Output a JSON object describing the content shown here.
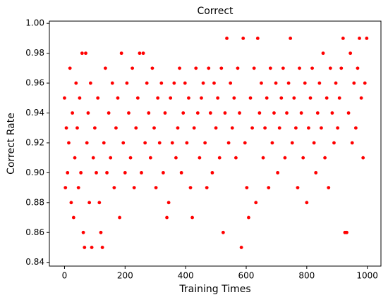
{
  "chart_data": {
    "type": "scatter",
    "title": "Correct",
    "xlabel": "Training Times",
    "ylabel": "Correct Rate",
    "xlim": [
      -50,
      1045
    ],
    "ylim": [
      0.8375,
      1.0015
    ],
    "xticks": [
      0,
      200,
      400,
      600,
      800,
      1000
    ],
    "yticks": [
      0.84,
      0.86,
      0.88,
      {
        "value": 0.9,
        "label": "0.90"
      },
      0.92,
      0.94,
      0.96,
      0.98,
      {
        "value": 1.0,
        "label": "1.00"
      }
    ],
    "color": "#ff0000",
    "series": [
      {
        "color": "#ff0000",
        "x": [
          0,
          3,
          6,
          10,
          14,
          18,
          22,
          26,
          30,
          34,
          38,
          42,
          46,
          50,
          54,
          58,
          62,
          66,
          70,
          74,
          78,
          82,
          86,
          90,
          95,
          100,
          105,
          110,
          115,
          120,
          125,
          130,
          135,
          140,
          146,
          152,
          158,
          164,
          170,
          176,
          182,
          188,
          194,
          200,
          206,
          212,
          218,
          224,
          230,
          236,
          242,
          248,
          254,
          260,
          266,
          272,
          278,
          284,
          290,
          296,
          302,
          308,
          314,
          320,
          326,
          332,
          338,
          344,
          350,
          356,
          362,
          368,
          374,
          380,
          386,
          392,
          398,
          404,
          410,
          416,
          422,
          428,
          434,
          440,
          446,
          452,
          458,
          464,
          470,
          476,
          482,
          488,
          494,
          500,
          506,
          512,
          518,
          524,
          530,
          536,
          542,
          548,
          554,
          560,
          566,
          572,
          578,
          584,
          590,
          596,
          602,
          608,
          614,
          620,
          626,
          632,
          638,
          644,
          650,
          656,
          662,
          668,
          674,
          680,
          686,
          692,
          698,
          704,
          710,
          716,
          722,
          728,
          734,
          740,
          746,
          752,
          758,
          764,
          770,
          776,
          782,
          788,
          794,
          800,
          806,
          812,
          818,
          824,
          830,
          836,
          842,
          848,
          854,
          860,
          866,
          872,
          878,
          884,
          890,
          896,
          902,
          908,
          914,
          920,
          926,
          932,
          938,
          944,
          950,
          956,
          962,
          968,
          974,
          980,
          986,
          992,
          998
        ],
        "y": [
          0.95,
          0.89,
          0.93,
          0.9,
          0.92,
          0.97,
          0.88,
          0.94,
          0.87,
          0.91,
          0.96,
          0.93,
          0.89,
          0.95,
          0.9,
          0.98,
          0.86,
          0.85,
          0.98,
          0.92,
          0.94,
          0.88,
          0.96,
          0.85,
          0.91,
          0.93,
          0.9,
          0.95,
          0.88,
          0.86,
          0.85,
          0.92,
          0.97,
          0.9,
          0.94,
          0.91,
          0.96,
          0.89,
          0.93,
          0.95,
          0.87,
          0.98,
          0.92,
          0.9,
          0.96,
          0.94,
          0.91,
          0.97,
          0.89,
          0.93,
          0.95,
          0.98,
          0.9,
          0.98,
          0.92,
          0.96,
          0.94,
          0.91,
          0.97,
          0.93,
          0.89,
          0.95,
          0.92,
          0.96,
          0.9,
          0.94,
          0.87,
          0.88,
          0.95,
          0.92,
          0.96,
          0.91,
          0.93,
          0.97,
          0.9,
          0.94,
          0.96,
          0.92,
          0.95,
          0.89,
          0.87,
          0.93,
          0.97,
          0.94,
          0.91,
          0.95,
          0.96,
          0.92,
          0.89,
          0.97,
          0.94,
          0.9,
          0.96,
          0.93,
          0.95,
          0.91,
          0.97,
          0.86,
          0.94,
          0.99,
          0.92,
          0.96,
          0.93,
          0.95,
          0.91,
          0.97,
          0.94,
          0.85,
          0.99,
          0.92,
          0.89,
          0.87,
          0.95,
          0.93,
          0.97,
          0.88,
          0.99,
          0.94,
          0.96,
          0.91,
          0.93,
          0.95,
          0.89,
          0.97,
          0.92,
          0.94,
          0.96,
          0.9,
          0.93,
          0.95,
          0.97,
          0.91,
          0.94,
          0.96,
          0.99,
          0.92,
          0.95,
          0.93,
          0.89,
          0.97,
          0.94,
          0.91,
          0.96,
          0.88,
          0.93,
          0.95,
          0.97,
          0.92,
          0.9,
          0.94,
          0.96,
          0.93,
          0.98,
          0.91,
          0.95,
          0.89,
          0.97,
          0.94,
          0.92,
          0.96,
          0.93,
          0.95,
          0.97,
          0.99,
          0.86,
          0.86,
          0.94,
          0.98,
          0.92,
          0.96,
          0.93,
          0.97,
          0.99,
          0.95,
          0.91,
          0.96,
          0.99
        ]
      }
    ]
  }
}
